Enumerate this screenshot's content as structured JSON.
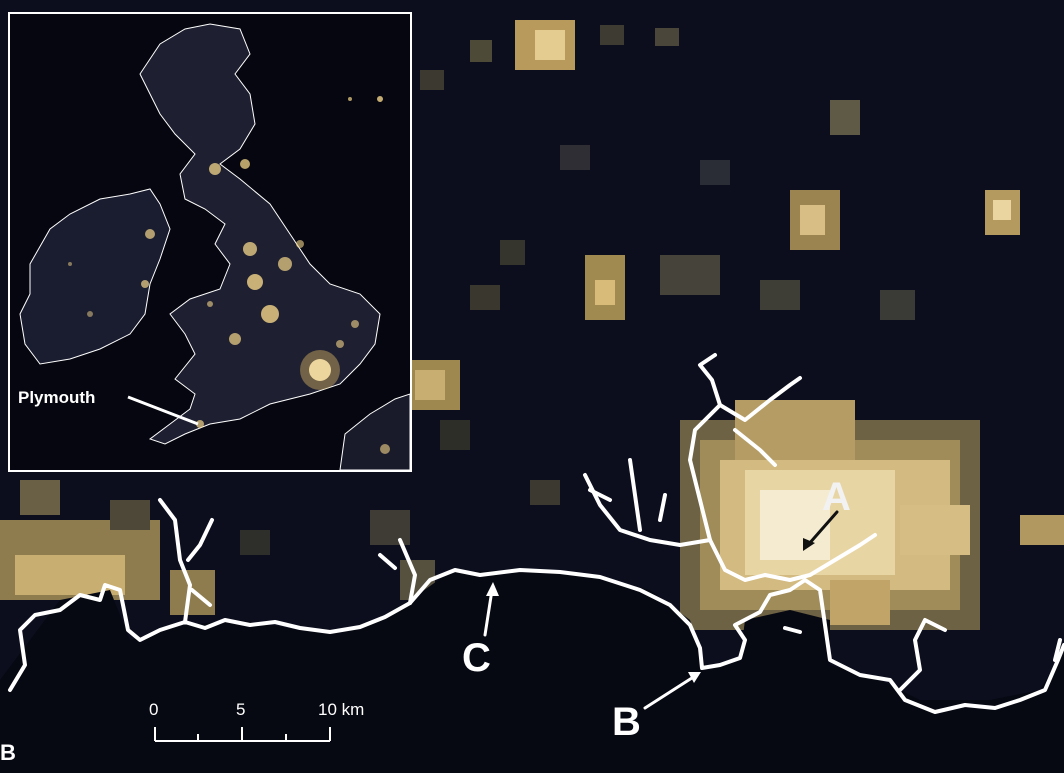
{
  "main_map": {
    "labels": {
      "a": "A",
      "b": "B",
      "c": "C"
    },
    "panel_letter": "B"
  },
  "inset": {
    "place_label": "Plymouth"
  },
  "scale_bar": {
    "ticks": [
      "0",
      "5",
      "10 km"
    ]
  },
  "colors": {
    "background": "#0b0d1c",
    "light_bright": "#f6efd6",
    "light_mid": "#d8c07a",
    "light_dim": "#4a4a42",
    "coastline": "#ffffff"
  }
}
